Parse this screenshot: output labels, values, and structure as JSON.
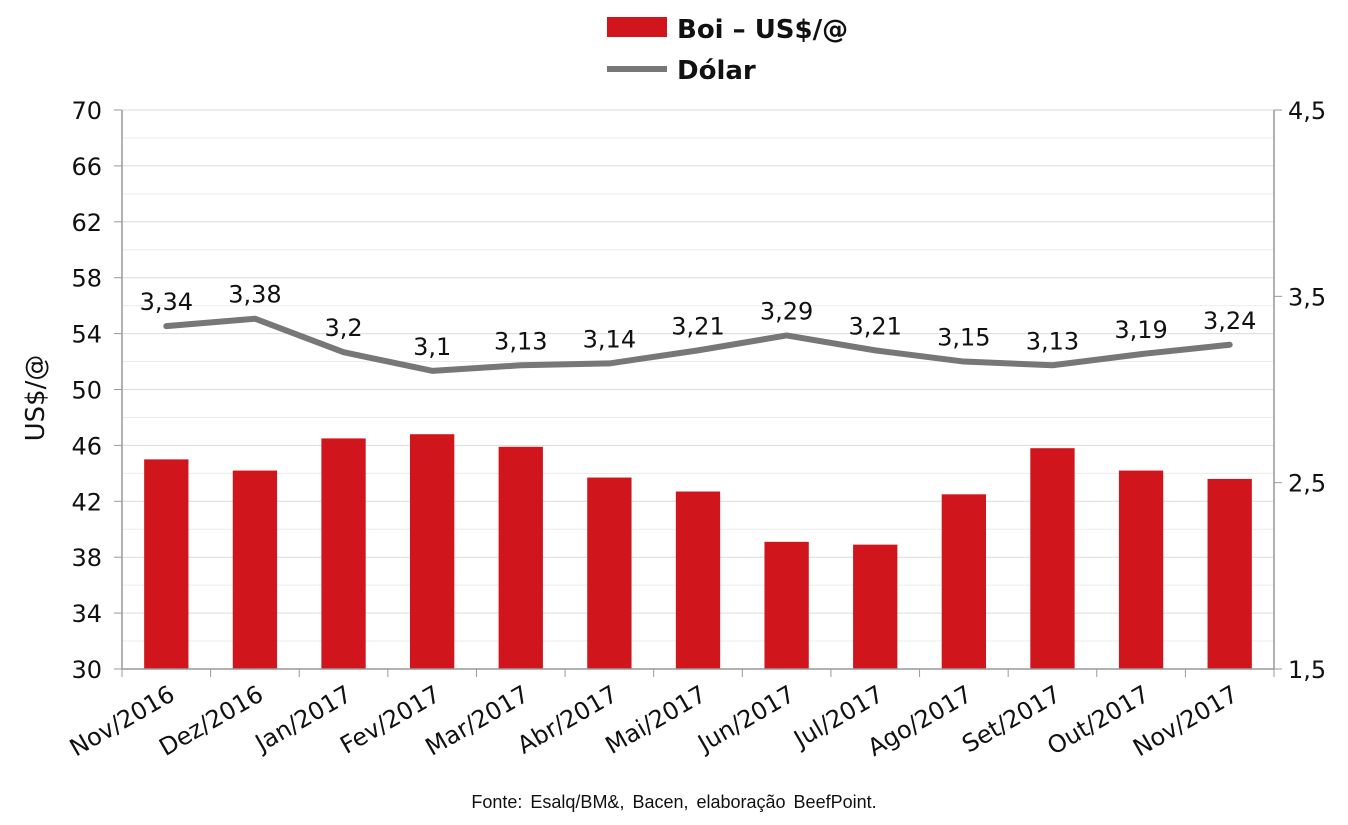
{
  "chart_data": {
    "type": "bar",
    "categories": [
      "Nov/2016",
      "Dez/2016",
      "Jan/2017",
      "Fev/2017",
      "Mar/2017",
      "Abr/2017",
      "Mai/2017",
      "Jun/2017",
      "Jul/2017",
      "Ago/2017",
      "Set/2017",
      "Out/2017",
      "Nov/2017"
    ],
    "series": [
      {
        "name": "Boi – US$/@",
        "type": "bar",
        "axis": "left",
        "color": "#d0161c",
        "values": [
          45.0,
          44.2,
          46.5,
          46.8,
          45.9,
          43.7,
          42.7,
          39.1,
          38.9,
          42.5,
          45.8,
          44.2,
          43.6
        ]
      },
      {
        "name": "Dólar",
        "type": "line",
        "axis": "right",
        "color": "#777777",
        "values": [
          3.34,
          3.38,
          3.2,
          3.1,
          3.13,
          3.14,
          3.21,
          3.29,
          3.21,
          3.15,
          3.13,
          3.19,
          3.24
        ],
        "labels": [
          "3,34",
          "3,38",
          "3,2",
          "3,1",
          "3,13",
          "3,14",
          "3,21",
          "3,29",
          "3,21",
          "3,15",
          "3,13",
          "3,19",
          "3,24"
        ]
      }
    ],
    "ylabel": "US$/@",
    "ylim": [
      30,
      70
    ],
    "y_ticks": [
      "70",
      "66",
      "62",
      "58",
      "54",
      "50",
      "46",
      "42",
      "38",
      "34",
      "30"
    ],
    "y_tick_values": [
      70,
      66,
      62,
      58,
      54,
      50,
      46,
      42,
      38,
      34,
      30
    ],
    "y2lim": [
      1.5,
      4.5
    ],
    "y2_ticks": [
      "4,5",
      "3,5",
      "2,5",
      "1,5"
    ],
    "y2_tick_values": [
      4.5,
      3.5,
      2.5,
      1.5
    ],
    "grid": true,
    "legend_position": "top-center"
  },
  "legend": {
    "bar_label": "Boi – US$/@",
    "line_label": "Dólar"
  },
  "source": "Fonte: Esalq/BM&, Bacen, elaboração BeefPoint."
}
